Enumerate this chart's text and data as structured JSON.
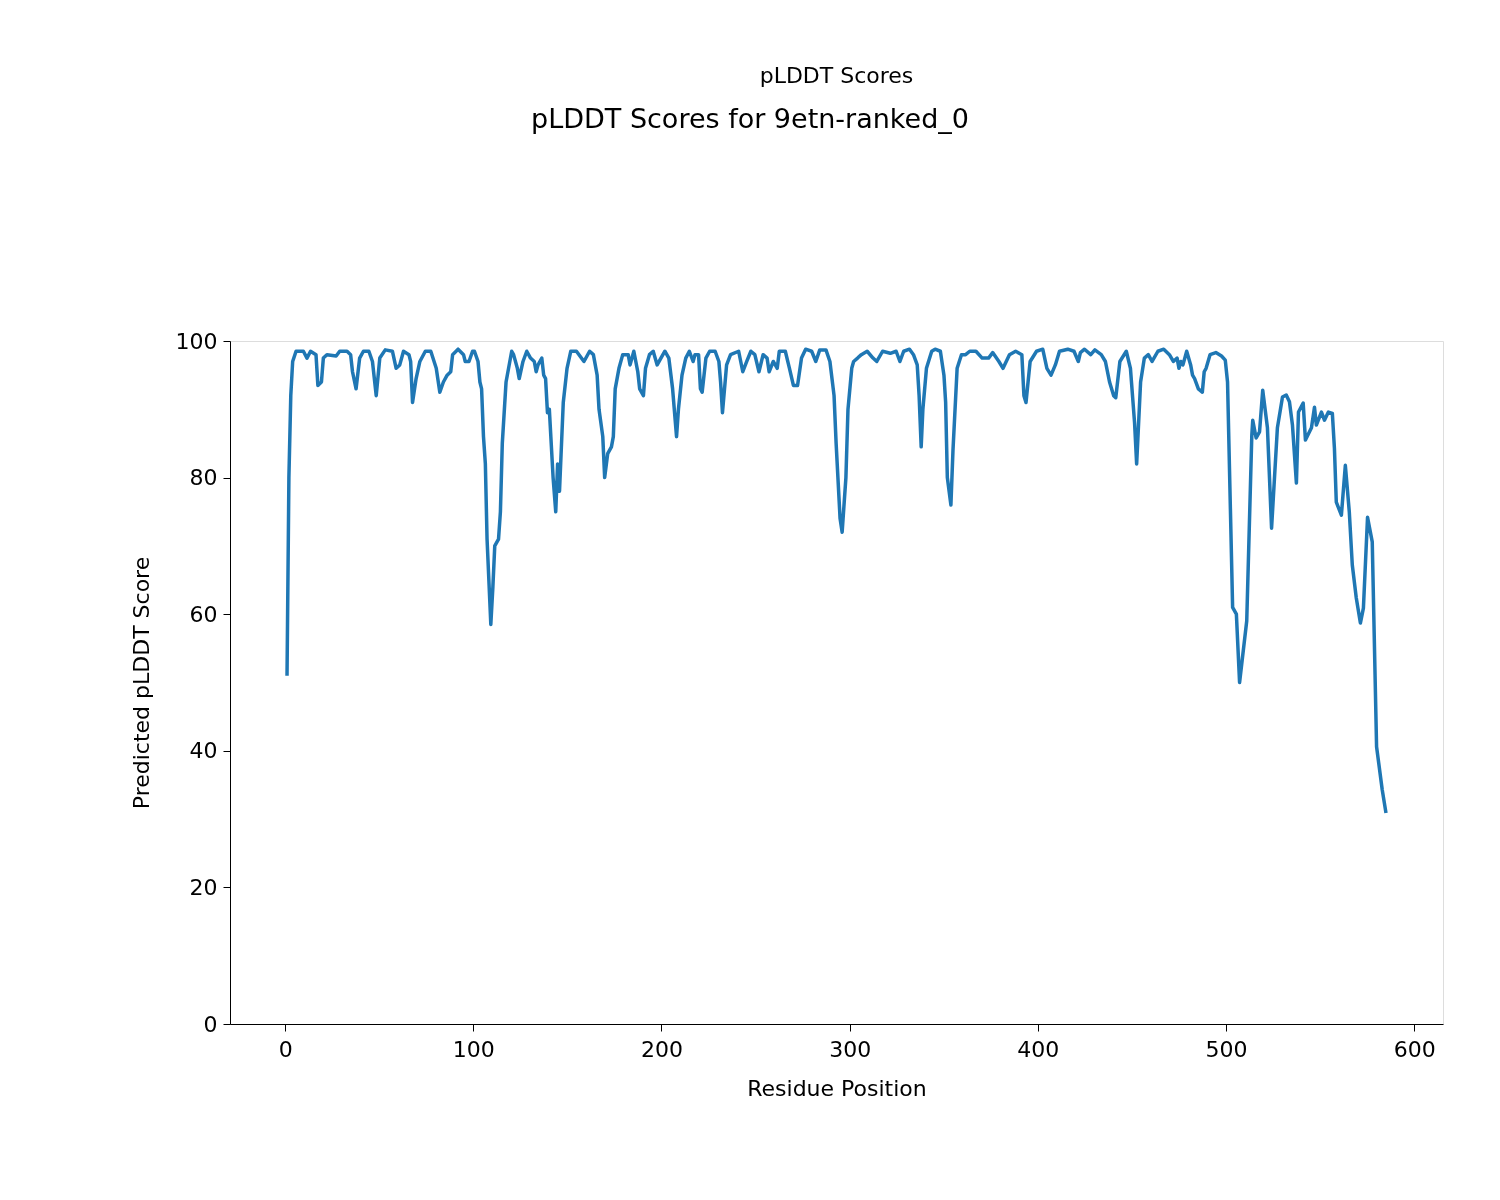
{
  "chart_data": {
    "type": "line",
    "title": "pLDDT Scores for 9etn-ranked_0",
    "subtitle": "pLDDT Scores",
    "xlabel": "Residue Position",
    "ylabel": "Predicted pLDDT Score",
    "xlim": [
      -29.3,
      615.3
    ],
    "ylim": [
      0,
      100
    ],
    "xticks": [
      0,
      100,
      200,
      300,
      400,
      500,
      600
    ],
    "yticks": [
      0,
      20,
      40,
      60,
      80,
      100
    ],
    "x": [
      1,
      2,
      3,
      4,
      5.8,
      9.7,
      11.6,
      13.5,
      16.4,
      17.4,
      19.3,
      20.3,
      22.2,
      27.1,
      29,
      32.9,
      34.8,
      35.8,
      37.7,
      39.6,
      41.6,
      44.5,
      46.4,
      48.4,
      50.3,
      53.2,
      57,
      59,
      60.9,
      62.9,
      65.8,
      66.7,
      67.7,
      69.6,
      71.6,
      74.5,
      77.4,
      80.3,
      82.2,
      84.1,
      86.1,
      88,
      89,
      91.9,
      94.8,
      95.7,
      97.7,
      99.6,
      100.6,
      102.5,
      103.5,
      104.4,
      105.4,
      106.4,
      107.3,
      109.3,
      110.4,
      111.4,
      113.4,
      114.4,
      115.4,
      117.4,
      120.4,
      121.4,
      123.4,
      124.4,
      126.4,
      128.4,
      130.4,
      132.4,
      133.4,
      134.4,
      136.4,
      137.4,
      138.4,
      139.4,
      140.4,
      142.4,
      143.8,
      144.8,
      145.8,
      147.8,
      149.8,
      151.8,
      154.8,
      158.8,
      161.8,
      163.8,
      165.8,
      166.8,
      168.8,
      169.8,
      171.4,
      173.4,
      174.4,
      175.4,
      177.4,
      179.4,
      182.3,
      183.3,
      185.3,
      187.4,
      188.4,
      190.4,
      191.5,
      193.6,
      195.6,
      197.7,
      199.7,
      201.8,
      203.9,
      205.9,
      208,
      209,
      210.9,
      212.9,
      214.8,
      216.8,
      217.8,
      219.7,
      220.7,
      221.6,
      223.6,
      225.6,
      228.5,
      230.5,
      231.4,
      232.4,
      234.6,
      236.7,
      241,
      243.2,
      245.3,
      247.5,
      249.6,
      251.8,
      254,
      256.1,
      257.2,
      259.4,
      261.5,
      262.6,
      265.8,
      268,
      270.1,
      272.3,
      274.4,
      276.6,
      279.8,
      282,
      284.1,
      287.4,
      289.5,
      291.7,
      292.8,
      294.9,
      296,
      298,
      299.1,
      301.1,
      302.1,
      304.2,
      306.2,
      309.3,
      312.4,
      314.4,
      317.5,
      321.6,
      324.7,
      326.7,
      328.7,
      331.8,
      333.9,
      335.9,
      336.9,
      338,
      338.9,
      340.8,
      343.6,
      345.4,
      348.2,
      350.1,
      351,
      351.9,
      353.8,
      354.9,
      357.1,
      359.4,
      361.6,
      363.8,
      367.1,
      370.4,
      373.8,
      376,
      379.3,
      381.5,
      384.9,
      388.2,
      391.5,
      392.6,
      393.7,
      395.9,
      399.3,
      402.6,
      404.8,
      407,
      409.3,
      411.5,
      415.9,
      419.2,
      421.5,
      422.6,
      424.8,
      428.1,
      430.3,
      433.7,
      435.9,
      438.1,
      440.3,
      441.4,
      443.6,
      447,
      449.2,
      451.4,
      452.5,
      454.6,
      456.6,
      458.7,
      460.7,
      463.8,
      466.9,
      469.9,
      472,
      474,
      475,
      476,
      477.1,
      479.1,
      481.2,
      482.2,
      483.3,
      485.3,
      487.4,
      488.4,
      489.4,
      491.5,
      494.6,
      497.6,
      499.6,
      500.8,
      503.5,
      505.5,
      507.2,
      511,
      513.7,
      514.2,
      516,
      517.8,
      519.5,
      522,
      524.2,
      527.3,
      530,
      532,
      533.7,
      535.3,
      537.4,
      538.5,
      541,
      542.2,
      545.4,
      547,
      548,
      550.7,
      552.3,
      554.4,
      556.5,
      557.6,
      558.6,
      561.3,
      563.4,
      565.5,
      567.1,
      569.2,
      571.4,
      573,
      575.2,
      577.7,
      580,
      583,
      585
    ],
    "values": [
      51,
      80,
      92,
      97,
      98.5,
      98.5,
      97.5,
      98.5,
      98,
      93.5,
      94,
      97.5,
      98,
      97.8,
      98.5,
      98.5,
      98,
      95.5,
      93,
      97.5,
      98.5,
      98.5,
      97,
      92,
      97.5,
      98.7,
      98.5,
      96,
      96.5,
      98.5,
      98,
      97,
      91,
      94.5,
      97,
      98.5,
      98.5,
      96,
      92.5,
      94,
      95,
      95.5,
      98,
      98.8,
      98,
      97,
      97,
      98.5,
      98.5,
      97,
      94,
      93,
      86,
      82,
      71,
      58.5,
      64,
      70,
      71,
      75,
      85,
      94,
      98.5,
      98,
      96,
      94.5,
      97,
      98.5,
      97.5,
      97,
      95.5,
      96.5,
      97.5,
      95,
      94.5,
      89.5,
      90,
      80,
      75,
      82,
      78,
      91,
      96,
      98.5,
      98.5,
      97,
      98.5,
      98,
      95,
      90,
      86,
      80,
      83.5,
      84.5,
      86,
      93,
      96,
      98,
      98,
      96.5,
      98.5,
      95.5,
      93,
      92,
      96,
      98,
      98.5,
      96.5,
      97.5,
      98.5,
      97.5,
      93,
      86,
      90,
      95,
      97.5,
      98.5,
      97,
      98,
      98,
      93,
      92.5,
      97.5,
      98.5,
      98.5,
      97,
      94,
      89.5,
      96.5,
      98,
      98.5,
      95.5,
      97,
      98.5,
      98,
      95.5,
      98,
      97.5,
      95.5,
      97,
      96,
      98.5,
      98.5,
      96,
      93.5,
      93.5,
      97.5,
      98.8,
      98.5,
      97,
      98.7,
      98.7,
      97,
      92,
      85,
      74,
      72,
      80,
      90,
      96,
      97,
      97.5,
      98,
      98.5,
      97.5,
      97,
      98.5,
      98.2,
      98.5,
      97,
      98.5,
      98.8,
      98,
      96.5,
      92,
      84.5,
      90,
      96,
      98.5,
      98.8,
      98.5,
      95,
      91,
      80,
      76,
      84,
      96,
      98,
      98,
      98.5,
      98.5,
      97.5,
      97.5,
      98.3,
      97,
      96,
      98,
      98.5,
      98,
      92,
      91,
      97,
      98.5,
      98.8,
      96,
      95,
      96.5,
      98.5,
      98.8,
      98.5,
      97,
      98.3,
      98.8,
      98,
      98.7,
      98,
      97,
      94,
      92,
      91.7,
      97,
      98.5,
      96,
      88,
      82,
      94,
      97.5,
      98,
      97,
      98.5,
      98.8,
      98,
      97,
      97.5,
      96,
      97,
      96.5,
      98.5,
      96.5,
      95,
      94.5,
      93,
      92.5,
      95.5,
      96,
      98,
      98.3,
      97.8,
      97.2,
      94,
      61,
      60,
      50,
      59,
      86.2,
      88.4,
      85.8,
      86.7,
      92.8,
      87.3,
      72.6,
      87.3,
      91.8,
      92.1,
      91.1,
      87.7,
      79.2,
      89.6,
      90.9,
      85.5,
      87.3,
      90.3,
      87.7,
      89.6,
      88.4,
      89.6,
      89.4,
      84.3,
      76.4,
      74.5,
      81.8,
      75,
      67.2,
      62.4,
      58.7,
      60.9,
      74.2,
      70.6,
      40.6,
      34.3,
      30.9
    ],
    "color": "#1f77b4"
  }
}
